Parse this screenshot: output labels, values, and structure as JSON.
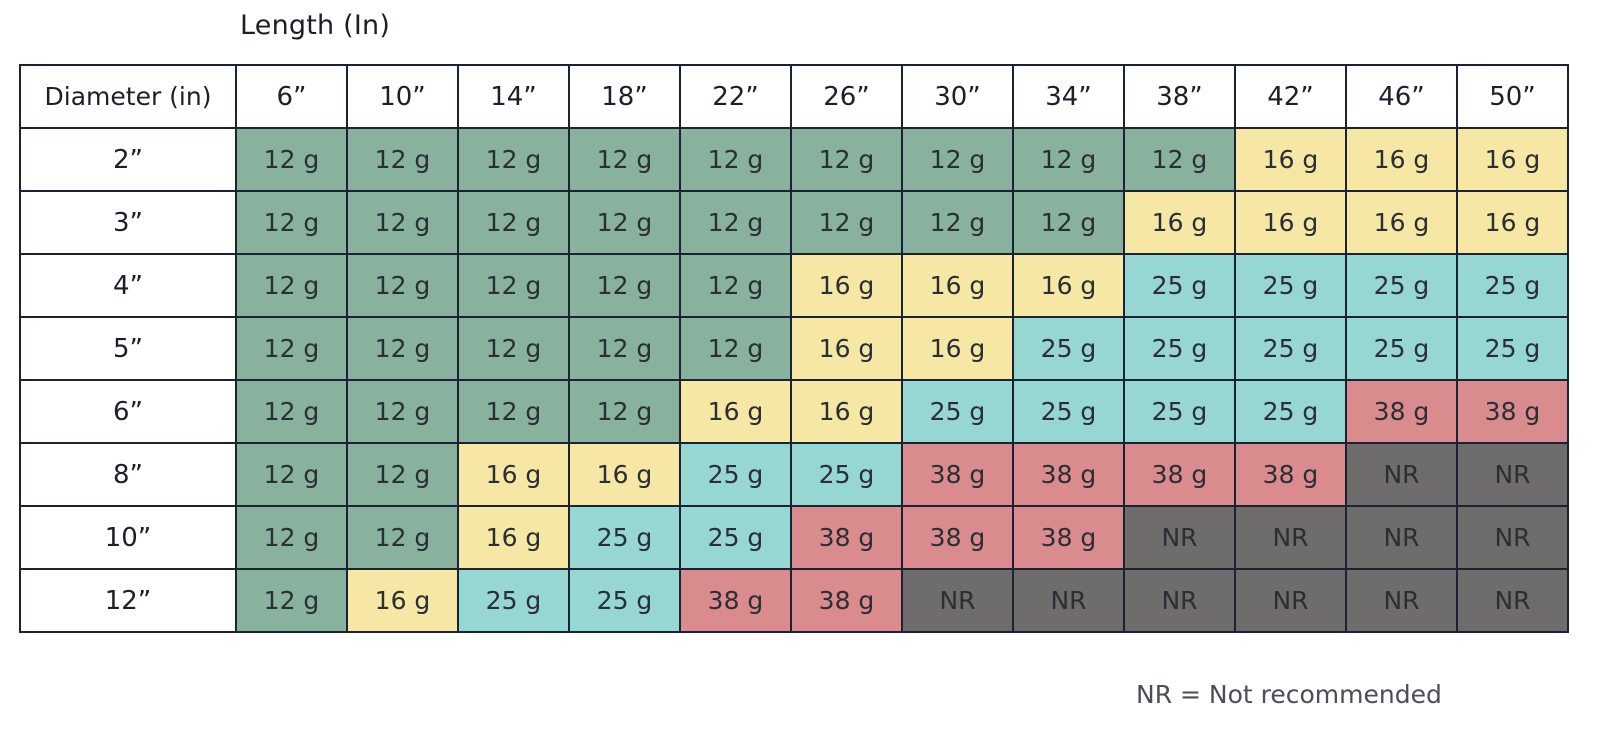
{
  "chart_data": {
    "type": "table",
    "title": "",
    "column_axis_label": "Length (In)",
    "row_axis_label": "Diameter (in)",
    "columns": [
      "6”",
      "10”",
      "14”",
      "18”",
      "22”",
      "26”",
      "30”",
      "34”",
      "38”",
      "42”",
      "46”",
      "50”"
    ],
    "rows": [
      {
        "label": "2”",
        "values": [
          "12 g",
          "12 g",
          "12 g",
          "12 g",
          "12 g",
          "12 g",
          "12 g",
          "12 g",
          "12 g",
          "16 g",
          "16 g",
          "16 g"
        ]
      },
      {
        "label": "3”",
        "values": [
          "12 g",
          "12 g",
          "12 g",
          "12 g",
          "12 g",
          "12 g",
          "12 g",
          "12 g",
          "16 g",
          "16 g",
          "16 g",
          "16 g"
        ]
      },
      {
        "label": "4”",
        "values": [
          "12 g",
          "12 g",
          "12 g",
          "12 g",
          "12 g",
          "16 g",
          "16 g",
          "16 g",
          "25 g",
          "25 g",
          "25 g",
          "25 g"
        ]
      },
      {
        "label": "5”",
        "values": [
          "12 g",
          "12 g",
          "12 g",
          "12 g",
          "12 g",
          "16 g",
          "16 g",
          "25 g",
          "25 g",
          "25 g",
          "25 g",
          "25 g"
        ]
      },
      {
        "label": "6”",
        "values": [
          "12 g",
          "12 g",
          "12 g",
          "12 g",
          "16 g",
          "16 g",
          "25 g",
          "25 g",
          "25 g",
          "25 g",
          "38 g",
          "38 g"
        ]
      },
      {
        "label": "8”",
        "values": [
          "12 g",
          "12 g",
          "16 g",
          "16 g",
          "25 g",
          "25 g",
          "38 g",
          "38 g",
          "38 g",
          "38 g",
          "NR",
          "NR"
        ]
      },
      {
        "label": "10”",
        "values": [
          "12 g",
          "12 g",
          "16 g",
          "25 g",
          "25 g",
          "38 g",
          "38 g",
          "38 g",
          "NR",
          "NR",
          "NR",
          "NR"
        ]
      },
      {
        "label": "12”",
        "values": [
          "12 g",
          "16 g",
          "25 g",
          "25 g",
          "38 g",
          "38 g",
          "NR",
          "NR",
          "NR",
          "NR",
          "NR",
          "NR"
        ]
      }
    ],
    "legend_note": "NR = Not recommended",
    "cell_colors": {
      "12 g": "#88b29d",
      "16 g": "#f6e7a5",
      "25 g": "#96d6d3",
      "38 g": "#d98b8e",
      "NR": "#6f6c6c"
    }
  }
}
